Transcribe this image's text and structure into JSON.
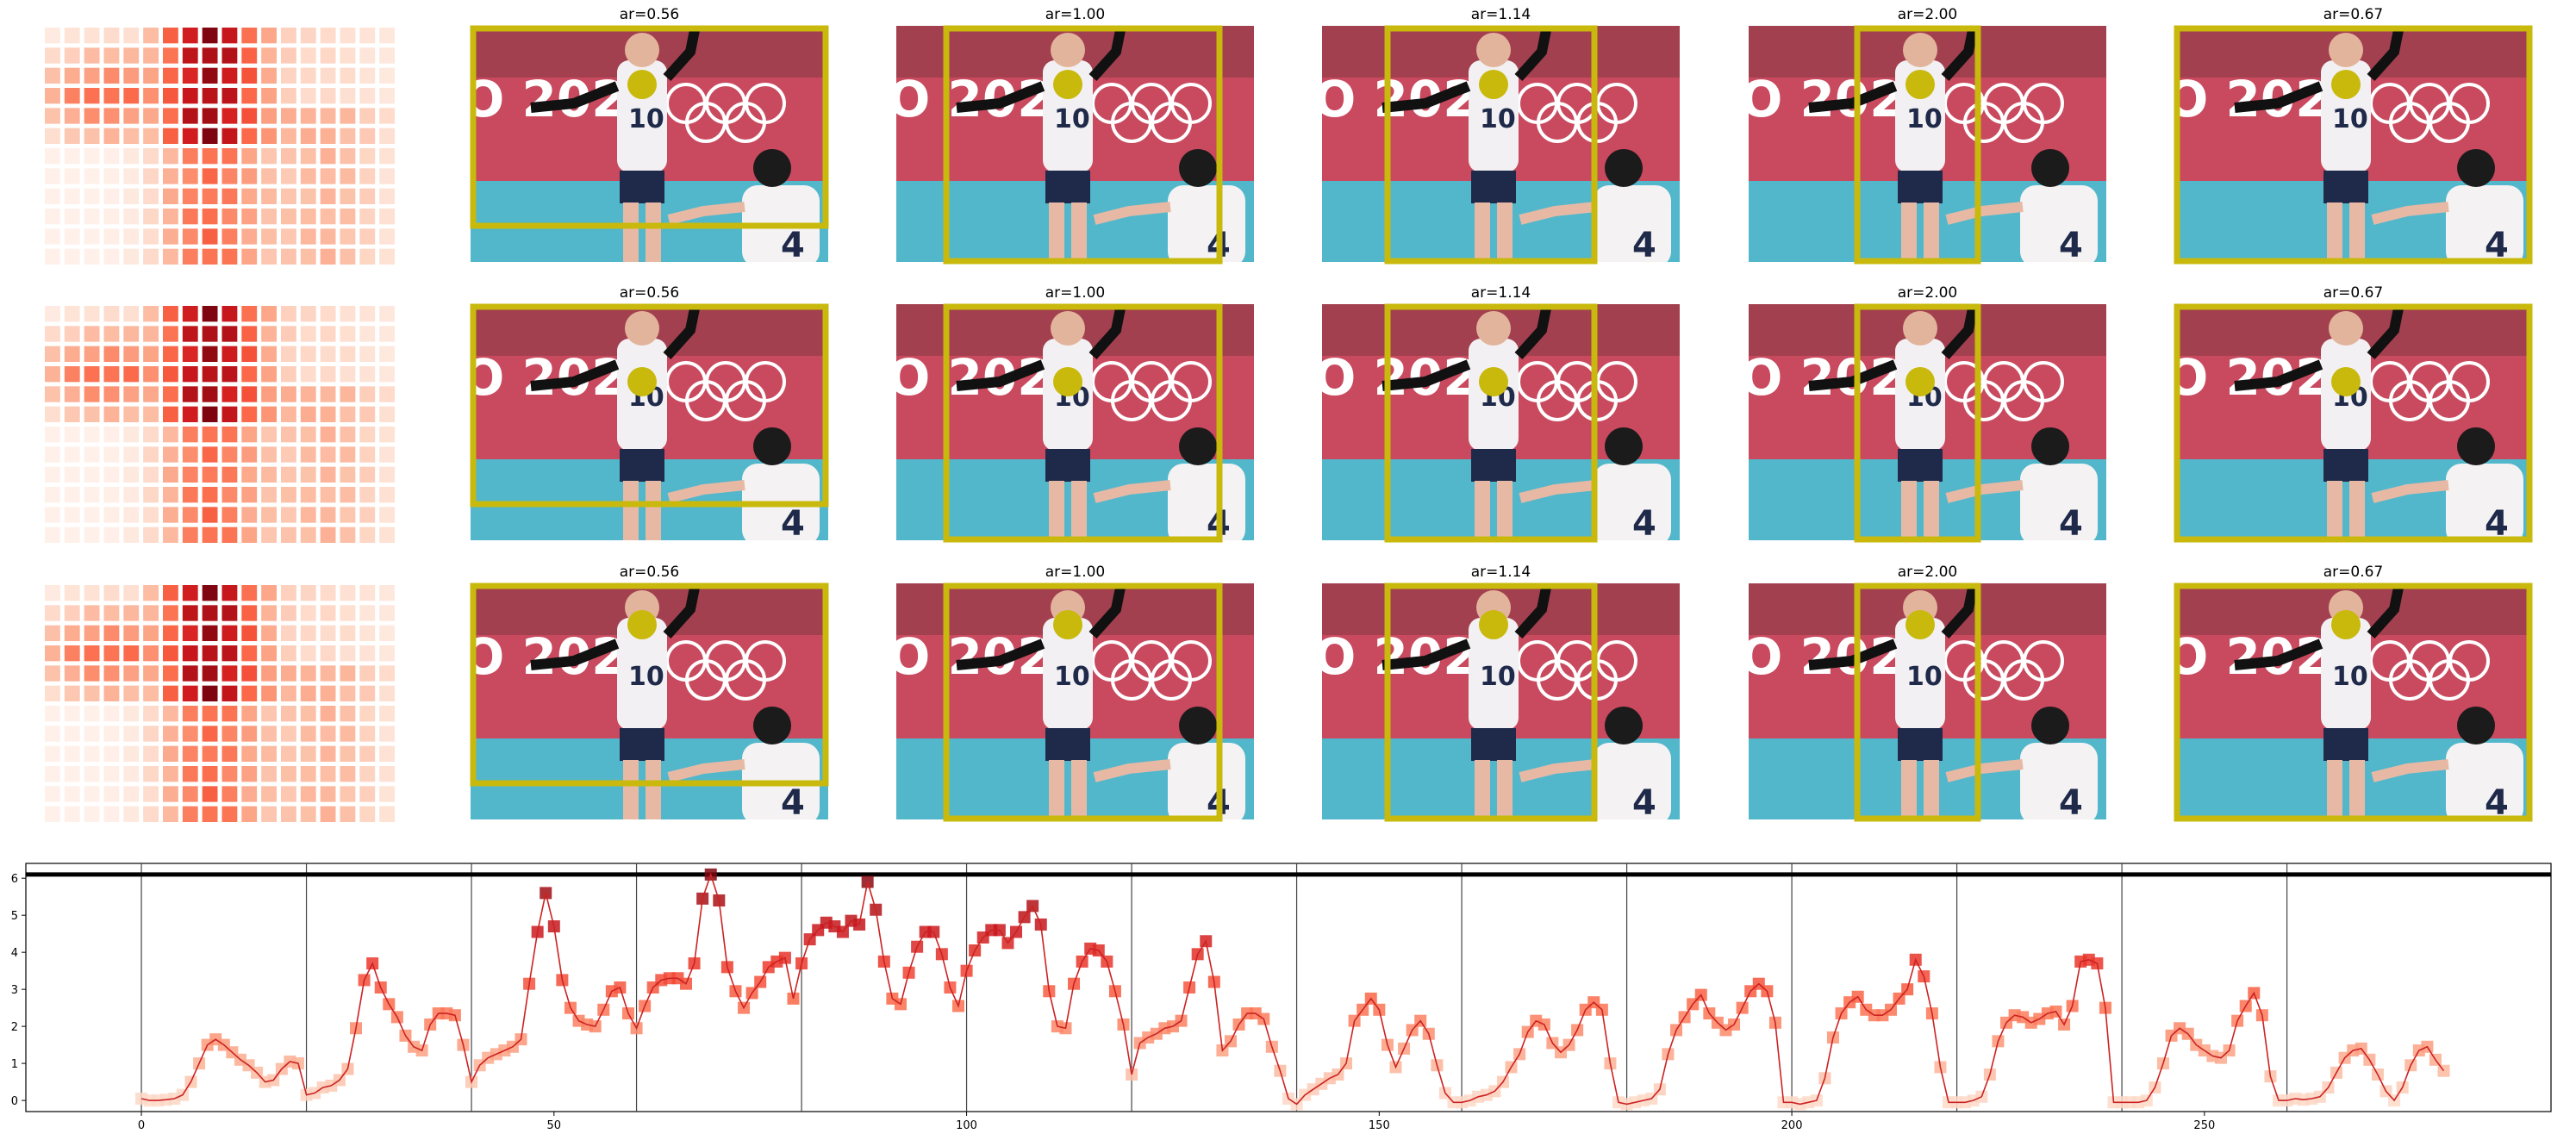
{
  "figure": {
    "panel_rows": [
      {
        "heatmap_icon": "attention-heatmap",
        "panels": [
          {
            "title": "ar=0.56",
            "photo_icon": "volleyball-photo",
            "marker_icon": "yellow-dot"
          },
          {
            "title": "ar=1.00",
            "photo_icon": "volleyball-photo",
            "marker_icon": "yellow-dot"
          },
          {
            "title": "ar=1.14",
            "photo_icon": "volleyball-photo",
            "marker_icon": "yellow-dot"
          },
          {
            "title": "ar=2.00",
            "photo_icon": "volleyball-photo",
            "marker_icon": "yellow-dot"
          },
          {
            "title": "ar=0.67",
            "photo_icon": "volleyball-photo",
            "marker_icon": "yellow-dot"
          }
        ]
      },
      {
        "heatmap_icon": "attention-heatmap",
        "panels": [
          {
            "title": "ar=0.56",
            "photo_icon": "volleyball-photo",
            "marker_icon": "yellow-dot"
          },
          {
            "title": "ar=1.00",
            "photo_icon": "volleyball-photo",
            "marker_icon": "yellow-dot"
          },
          {
            "title": "ar=1.14",
            "photo_icon": "volleyball-photo",
            "marker_icon": "yellow-dot"
          },
          {
            "title": "ar=2.00",
            "photo_icon": "volleyball-photo",
            "marker_icon": "yellow-dot"
          },
          {
            "title": "ar=0.67",
            "photo_icon": "volleyball-photo",
            "marker_icon": "yellow-dot"
          }
        ]
      },
      {
        "heatmap_icon": "attention-heatmap",
        "panels": [
          {
            "title": "ar=0.56",
            "photo_icon": "volleyball-photo",
            "marker_icon": "yellow-dot"
          },
          {
            "title": "ar=1.00",
            "photo_icon": "volleyball-photo",
            "marker_icon": "yellow-dot"
          },
          {
            "title": "ar=1.14",
            "photo_icon": "volleyball-photo",
            "marker_icon": "yellow-dot"
          },
          {
            "title": "ar=2.00",
            "photo_icon": "volleyball-photo",
            "marker_icon": "yellow-dot"
          },
          {
            "title": "ar=0.67",
            "photo_icon": "volleyball-photo",
            "marker_icon": "yellow-dot"
          }
        ]
      }
    ],
    "box_color": "#c8b90c",
    "photo_text": "O 2020",
    "jersey_number_front": "10",
    "jersey_number_back": "4"
  },
  "chart_data": {
    "type": "line",
    "title": "",
    "xlabel": "",
    "ylabel": "",
    "xlim": [
      -14,
      292
    ],
    "ylim": [
      -0.3,
      6.4
    ],
    "x_ticks": [
      0,
      50,
      100,
      150,
      200,
      250
    ],
    "y_ticks": [
      0,
      1,
      2,
      3,
      4,
      5,
      6
    ],
    "segment_boundaries": [
      0,
      20,
      40,
      60,
      80,
      100,
      120,
      140,
      160,
      180,
      200,
      220,
      240,
      260
    ],
    "reference_line_y": 6.1,
    "grid": false,
    "legend": "none",
    "line_color": "#cc2222",
    "marker": "square",
    "colormap": "Reds",
    "series": [
      {
        "values": [
          0.05,
          0.0,
          0.0,
          0.02,
          0.05,
          0.15,
          0.5,
          1.0,
          1.5,
          1.65,
          1.5,
          1.3,
          1.1,
          0.95,
          0.75,
          0.5,
          0.55,
          0.85,
          1.05,
          1.0,
          0.15,
          0.2,
          0.35,
          0.4,
          0.55,
          0.85,
          1.95,
          3.25,
          3.7,
          3.05,
          2.6,
          2.25,
          1.75,
          1.45,
          1.35,
          2.05,
          2.35,
          2.35,
          2.3,
          1.5,
          0.5,
          0.95,
          1.15,
          1.25,
          1.35,
          1.45,
          1.65,
          3.15,
          4.55,
          5.6,
          4.7,
          3.25,
          2.5,
          2.15,
          2.05,
          2.0,
          2.45,
          2.95,
          3.05,
          2.35,
          1.95,
          2.55,
          3.05,
          3.25,
          3.3,
          3.3,
          3.15,
          3.7,
          5.45,
          6.1,
          5.4,
          3.6,
          2.95,
          2.5,
          2.9,
          3.2,
          3.6,
          3.75,
          3.85,
          2.75,
          3.7,
          4.35,
          4.6,
          4.8,
          4.7,
          4.55,
          4.85,
          4.75,
          5.9,
          5.15,
          3.75,
          2.75,
          2.6,
          3.45,
          4.15,
          4.55,
          4.55,
          3.95,
          3.05,
          2.55,
          3.5,
          4.05,
          4.4,
          4.6,
          4.6,
          4.25,
          4.55,
          4.95,
          5.25,
          4.75,
          2.95,
          2.0,
          1.95,
          3.15,
          3.75,
          4.1,
          4.05,
          3.75,
          2.95,
          2.05,
          0.7,
          1.55,
          1.7,
          1.8,
          1.95,
          2.0,
          2.15,
          3.05,
          3.95,
          4.3,
          3.2,
          1.35,
          1.6,
          2.05,
          2.35,
          2.35,
          2.2,
          1.45,
          0.8,
          0.05,
          -0.1,
          0.15,
          0.3,
          0.45,
          0.6,
          0.7,
          1.0,
          2.15,
          2.45,
          2.75,
          2.45,
          1.5,
          0.9,
          1.4,
          1.9,
          2.15,
          1.8,
          0.95,
          0.2,
          -0.05,
          -0.05,
          0.0,
          0.1,
          0.15,
          0.25,
          0.5,
          0.9,
          1.25,
          1.85,
          2.15,
          2.05,
          1.55,
          1.3,
          1.5,
          1.9,
          2.45,
          2.65,
          2.45,
          1.0,
          -0.05,
          -0.1,
          -0.05,
          0.0,
          0.05,
          0.3,
          1.25,
          1.9,
          2.25,
          2.6,
          2.85,
          2.35,
          2.1,
          1.9,
          2.05,
          2.5,
          2.95,
          3.15,
          2.95,
          2.1,
          -0.05,
          -0.05,
          -0.1,
          -0.05,
          0.0,
          0.6,
          1.7,
          2.35,
          2.65,
          2.8,
          2.45,
          2.3,
          2.3,
          2.45,
          2.75,
          3.0,
          3.8,
          3.35,
          2.35,
          0.9,
          -0.05,
          -0.05,
          -0.05,
          0.0,
          0.1,
          0.7,
          1.6,
          2.1,
          2.3,
          2.25,
          2.1,
          2.2,
          2.35,
          2.4,
          2.05,
          2.55,
          3.75,
          3.8,
          3.7,
          2.5,
          -0.05,
          -0.05,
          -0.05,
          -0.05,
          0.0,
          0.35,
          1.0,
          1.75,
          1.95,
          1.8,
          1.5,
          1.35,
          1.2,
          1.15,
          1.35,
          2.15,
          2.55,
          2.9,
          2.3,
          0.65,
          0.0,
          0.0,
          0.05,
          0.02,
          0.05,
          0.1,
          0.35,
          0.75,
          1.15,
          1.35,
          1.4,
          1.1,
          0.7,
          0.25,
          0.0,
          0.35,
          0.95,
          1.35,
          1.45,
          1.1,
          0.8
        ]
      }
    ]
  }
}
